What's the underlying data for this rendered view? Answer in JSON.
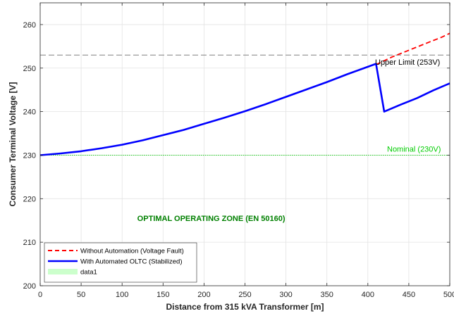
{
  "chart_data": {
    "type": "line",
    "title": "",
    "xlabel": "Distance from 315 kVA Transformer [m]",
    "ylabel": "Consumer Terminal Voltage [V]",
    "xlim": [
      0,
      500
    ],
    "ylim": [
      200,
      265
    ],
    "xticks": [
      0,
      50,
      100,
      150,
      200,
      250,
      300,
      350,
      400,
      450,
      500
    ],
    "yticks": [
      200,
      210,
      220,
      230,
      240,
      250,
      260
    ],
    "grid": true,
    "legend_position": "bottom-left",
    "series": [
      {
        "name": "Without Automation (Voltage Fault)",
        "color": "#ff0000",
        "style": "dashed",
        "x": [
          410,
          430,
          450,
          470,
          490,
          500
        ],
        "y": [
          250.8,
          252.6,
          254.1,
          255.6,
          257.1,
          258.0
        ]
      },
      {
        "name": "With Automated OLTC (Stabilized)",
        "color": "#0000ff",
        "style": "solid",
        "x": [
          0,
          25,
          50,
          75,
          100,
          125,
          150,
          175,
          200,
          225,
          250,
          275,
          300,
          325,
          350,
          375,
          400,
          410,
          420,
          440,
          460,
          480,
          500
        ],
        "y": [
          230.0,
          230.4,
          230.9,
          231.6,
          232.4,
          233.4,
          234.6,
          235.8,
          237.2,
          238.6,
          240.1,
          241.7,
          243.4,
          245.1,
          246.8,
          248.6,
          250.3,
          251.0,
          240.0,
          241.6,
          243.1,
          244.9,
          246.5
        ]
      },
      {
        "name": "data1",
        "color": "#ccffcc",
        "style": "area",
        "x": [
          0,
          500
        ],
        "y": [
          230,
          230
        ]
      }
    ],
    "reference_lines": [
      {
        "label": "Upper Limit (253V)",
        "value": 253,
        "color": "#808080",
        "style": "dashed",
        "label_color": "#000000"
      },
      {
        "label": "Nominal (230V)",
        "value": 230,
        "color": "#00cc00",
        "style": "dotted",
        "label_color": "#00cc00"
      }
    ],
    "annotations": [
      {
        "text": "OPTIMAL OPERATING ZONE (EN 50160)",
        "x": 140,
        "y": 215.5,
        "color": "#008000"
      }
    ]
  }
}
